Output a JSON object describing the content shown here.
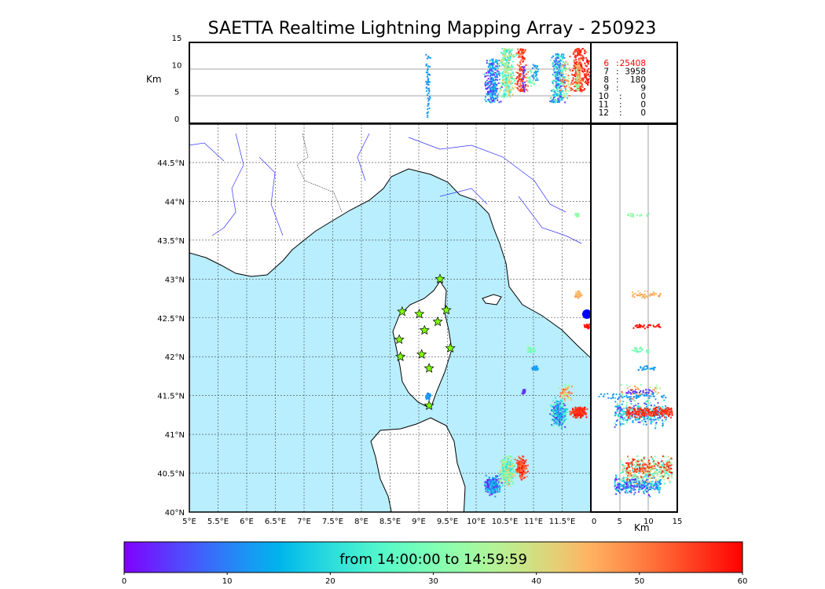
{
  "title": "SAETTA Realtime Lightning Mapping Array - 250923",
  "chart_data": {
    "type": "scatter",
    "title": "SAETTA Realtime Lightning Mapping Array - 250923",
    "map": {
      "xlim": [
        5,
        12
      ],
      "ylim": [
        40,
        45
      ],
      "x_ticks": [
        "5°E",
        "5.5°E",
        "6°E",
        "6.5°E",
        "7°E",
        "7.5°E",
        "8°E",
        "8.5°E",
        "9°E",
        "9.5°E",
        "10°E",
        "10.5°E",
        "11°E",
        "11.5°E"
      ],
      "y_ticks": [
        "40°N",
        "40.5°N",
        "41°N",
        "41.5°N",
        "42°N",
        "42.5°N",
        "43°N",
        "43.5°N",
        "44°N",
        "44.5°N"
      ],
      "grid": true
    },
    "top_panel": {
      "ylabel": "Km",
      "ylim": [
        0,
        15
      ],
      "y_ticks": [
        "0",
        "5",
        "10",
        "15"
      ]
    },
    "right_panel": {
      "xlabel": "Km",
      "xlim": [
        0,
        15
      ],
      "x_ticks": [
        "0",
        "5",
        "10",
        "15"
      ]
    },
    "station_count_legend": [
      {
        "stations": "6",
        "sep": ":",
        "count": "25408",
        "color": "#ff0000"
      },
      {
        "stations": "7",
        "sep": ":",
        "count": "3958",
        "color": "#000000"
      },
      {
        "stations": "8",
        "sep": ":",
        "count": "180",
        "color": "#000000"
      },
      {
        "stations": "9",
        "sep": ":",
        "count": "9",
        "color": "#000000"
      },
      {
        "stations": "10",
        "sep": ":",
        "count": "0",
        "color": "#000000"
      },
      {
        "stations": "11",
        "sep": ":",
        "count": "0",
        "color": "#000000"
      },
      {
        "stations": "12",
        "sep": ":",
        "count": "0",
        "color": "#000000"
      }
    ],
    "stations": [
      {
        "lon": 9.37,
        "lat": 43.0
      },
      {
        "lon": 8.71,
        "lat": 42.58
      },
      {
        "lon": 9.01,
        "lat": 42.55
      },
      {
        "lon": 9.48,
        "lat": 42.6
      },
      {
        "lon": 9.33,
        "lat": 42.45
      },
      {
        "lon": 9.1,
        "lat": 42.34
      },
      {
        "lon": 8.66,
        "lat": 42.22
      },
      {
        "lon": 9.55,
        "lat": 42.11
      },
      {
        "lon": 8.68,
        "lat": 42.0
      },
      {
        "lon": 9.05,
        "lat": 42.03
      },
      {
        "lon": 9.18,
        "lat": 41.85
      },
      {
        "lon": 9.18,
        "lat": 41.37
      }
    ],
    "lightning_clusters": [
      {
        "lon": [
          10.1,
          10.45
        ],
        "lat": [
          40.2,
          40.5
        ],
        "alt": [
          4,
          12
        ],
        "minutes": [
          0,
          20
        ],
        "n": 260
      },
      {
        "lon": [
          10.35,
          10.7
        ],
        "lat": [
          40.3,
          40.78
        ],
        "alt": [
          5,
          14
        ],
        "minutes": [
          18,
          45
        ],
        "n": 320
      },
      {
        "lon": [
          10.65,
          10.9
        ],
        "lat": [
          40.4,
          40.75
        ],
        "alt": [
          6,
          14
        ],
        "minutes": [
          50,
          60
        ],
        "n": 140
      },
      {
        "lon": [
          11.25,
          11.6
        ],
        "lat": [
          41.05,
          41.5
        ],
        "alt": [
          4,
          13
        ],
        "minutes": [
          3,
          30
        ],
        "n": 300
      },
      {
        "lon": [
          11.6,
          11.95
        ],
        "lat": [
          41.2,
          41.38
        ],
        "alt": [
          6,
          14
        ],
        "minutes": [
          53,
          60
        ],
        "n": 200
      },
      {
        "lon": [
          11.4,
          11.7
        ],
        "lat": [
          41.4,
          41.7
        ],
        "alt": [
          5,
          12
        ],
        "minutes": [
          30,
          55
        ],
        "n": 60
      },
      {
        "lon": [
          10.78,
          10.85
        ],
        "lat": [
          41.52,
          41.6
        ],
        "alt": [
          6,
          11
        ],
        "minutes": [
          2,
          6
        ],
        "n": 25
      },
      {
        "lon": [
          10.85,
          11.05
        ],
        "lat": [
          42.05,
          42.15
        ],
        "alt": [
          7,
          10
        ],
        "minutes": [
          25,
          33
        ],
        "n": 30
      },
      {
        "lon": [
          10.95,
          11.1
        ],
        "lat": [
          41.82,
          41.9
        ],
        "alt": [
          8,
          11
        ],
        "minutes": [
          10,
          15
        ],
        "n": 25
      },
      {
        "lon": [
          11.7,
          11.85
        ],
        "lat": [
          42.75,
          42.87
        ],
        "alt": [
          7,
          12
        ],
        "minutes": [
          42,
          48
        ],
        "n": 50
      },
      {
        "lon": [
          11.85,
          12.0
        ],
        "lat": [
          42.36,
          42.44
        ],
        "alt": [
          7,
          12
        ],
        "minutes": [
          57,
          60
        ],
        "n": 35
      },
      {
        "lon": [
          11.7,
          11.8
        ],
        "lat": [
          43.8,
          43.86
        ],
        "alt": [
          6,
          10
        ],
        "minutes": [
          30,
          34
        ],
        "n": 20
      },
      {
        "lon": [
          9.1,
          9.2
        ],
        "lat": [
          41.45,
          41.55
        ],
        "alt": [
          1,
          13
        ],
        "minutes": [
          10,
          14
        ],
        "n": 60
      }
    ],
    "colorbar": {
      "label": "from 14:00:00 to 14:59:59",
      "range": [
        0,
        60
      ],
      "ticks": [
        "0",
        "10",
        "20",
        "30",
        "40",
        "50",
        "60"
      ],
      "colormap": "rainbow"
    },
    "sea_color": "#b8eefe"
  }
}
